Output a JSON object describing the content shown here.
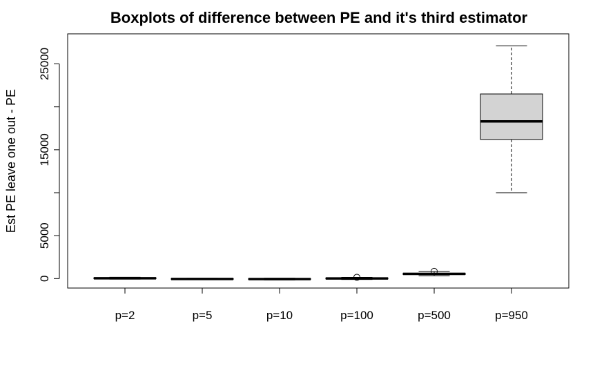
{
  "chart_data": {
    "type": "boxplot",
    "title": "Boxplots of difference between PE and it's third estimator",
    "xlabel": "",
    "ylabel": "Est PE leave one out - PE",
    "ylim": [
      -1100,
      28500
    ],
    "yticks": [
      0,
      5000,
      10000,
      15000,
      20000,
      25000
    ],
    "ytick_labels": [
      "0",
      "5000",
      "",
      "15000",
      "",
      "25000"
    ],
    "categories": [
      "p=2",
      "p=5",
      "p=10",
      "p=100",
      "p=500",
      "p=950"
    ],
    "box_fill": "#d3d3d3",
    "boxes": [
      {
        "min": -60,
        "q1": -20,
        "median": 40,
        "q3": 100,
        "max": 160,
        "outliers": []
      },
      {
        "min": -120,
        "q1": -80,
        "median": -40,
        "q3": 0,
        "max": 40,
        "outliers": []
      },
      {
        "min": -150,
        "q1": -100,
        "median": -50,
        "q3": 0,
        "max": 50,
        "outliers": []
      },
      {
        "min": -100,
        "q1": -40,
        "median": 20,
        "q3": 80,
        "max": 150,
        "outliers": [
          150
        ]
      },
      {
        "min": 330,
        "q1": 470,
        "median": 550,
        "q3": 640,
        "max": 820,
        "outliers": [
          840
        ]
      },
      {
        "min": 10000,
        "q1": 16200,
        "median": 18300,
        "q3": 21500,
        "max": 27100,
        "outliers": []
      }
    ]
  }
}
